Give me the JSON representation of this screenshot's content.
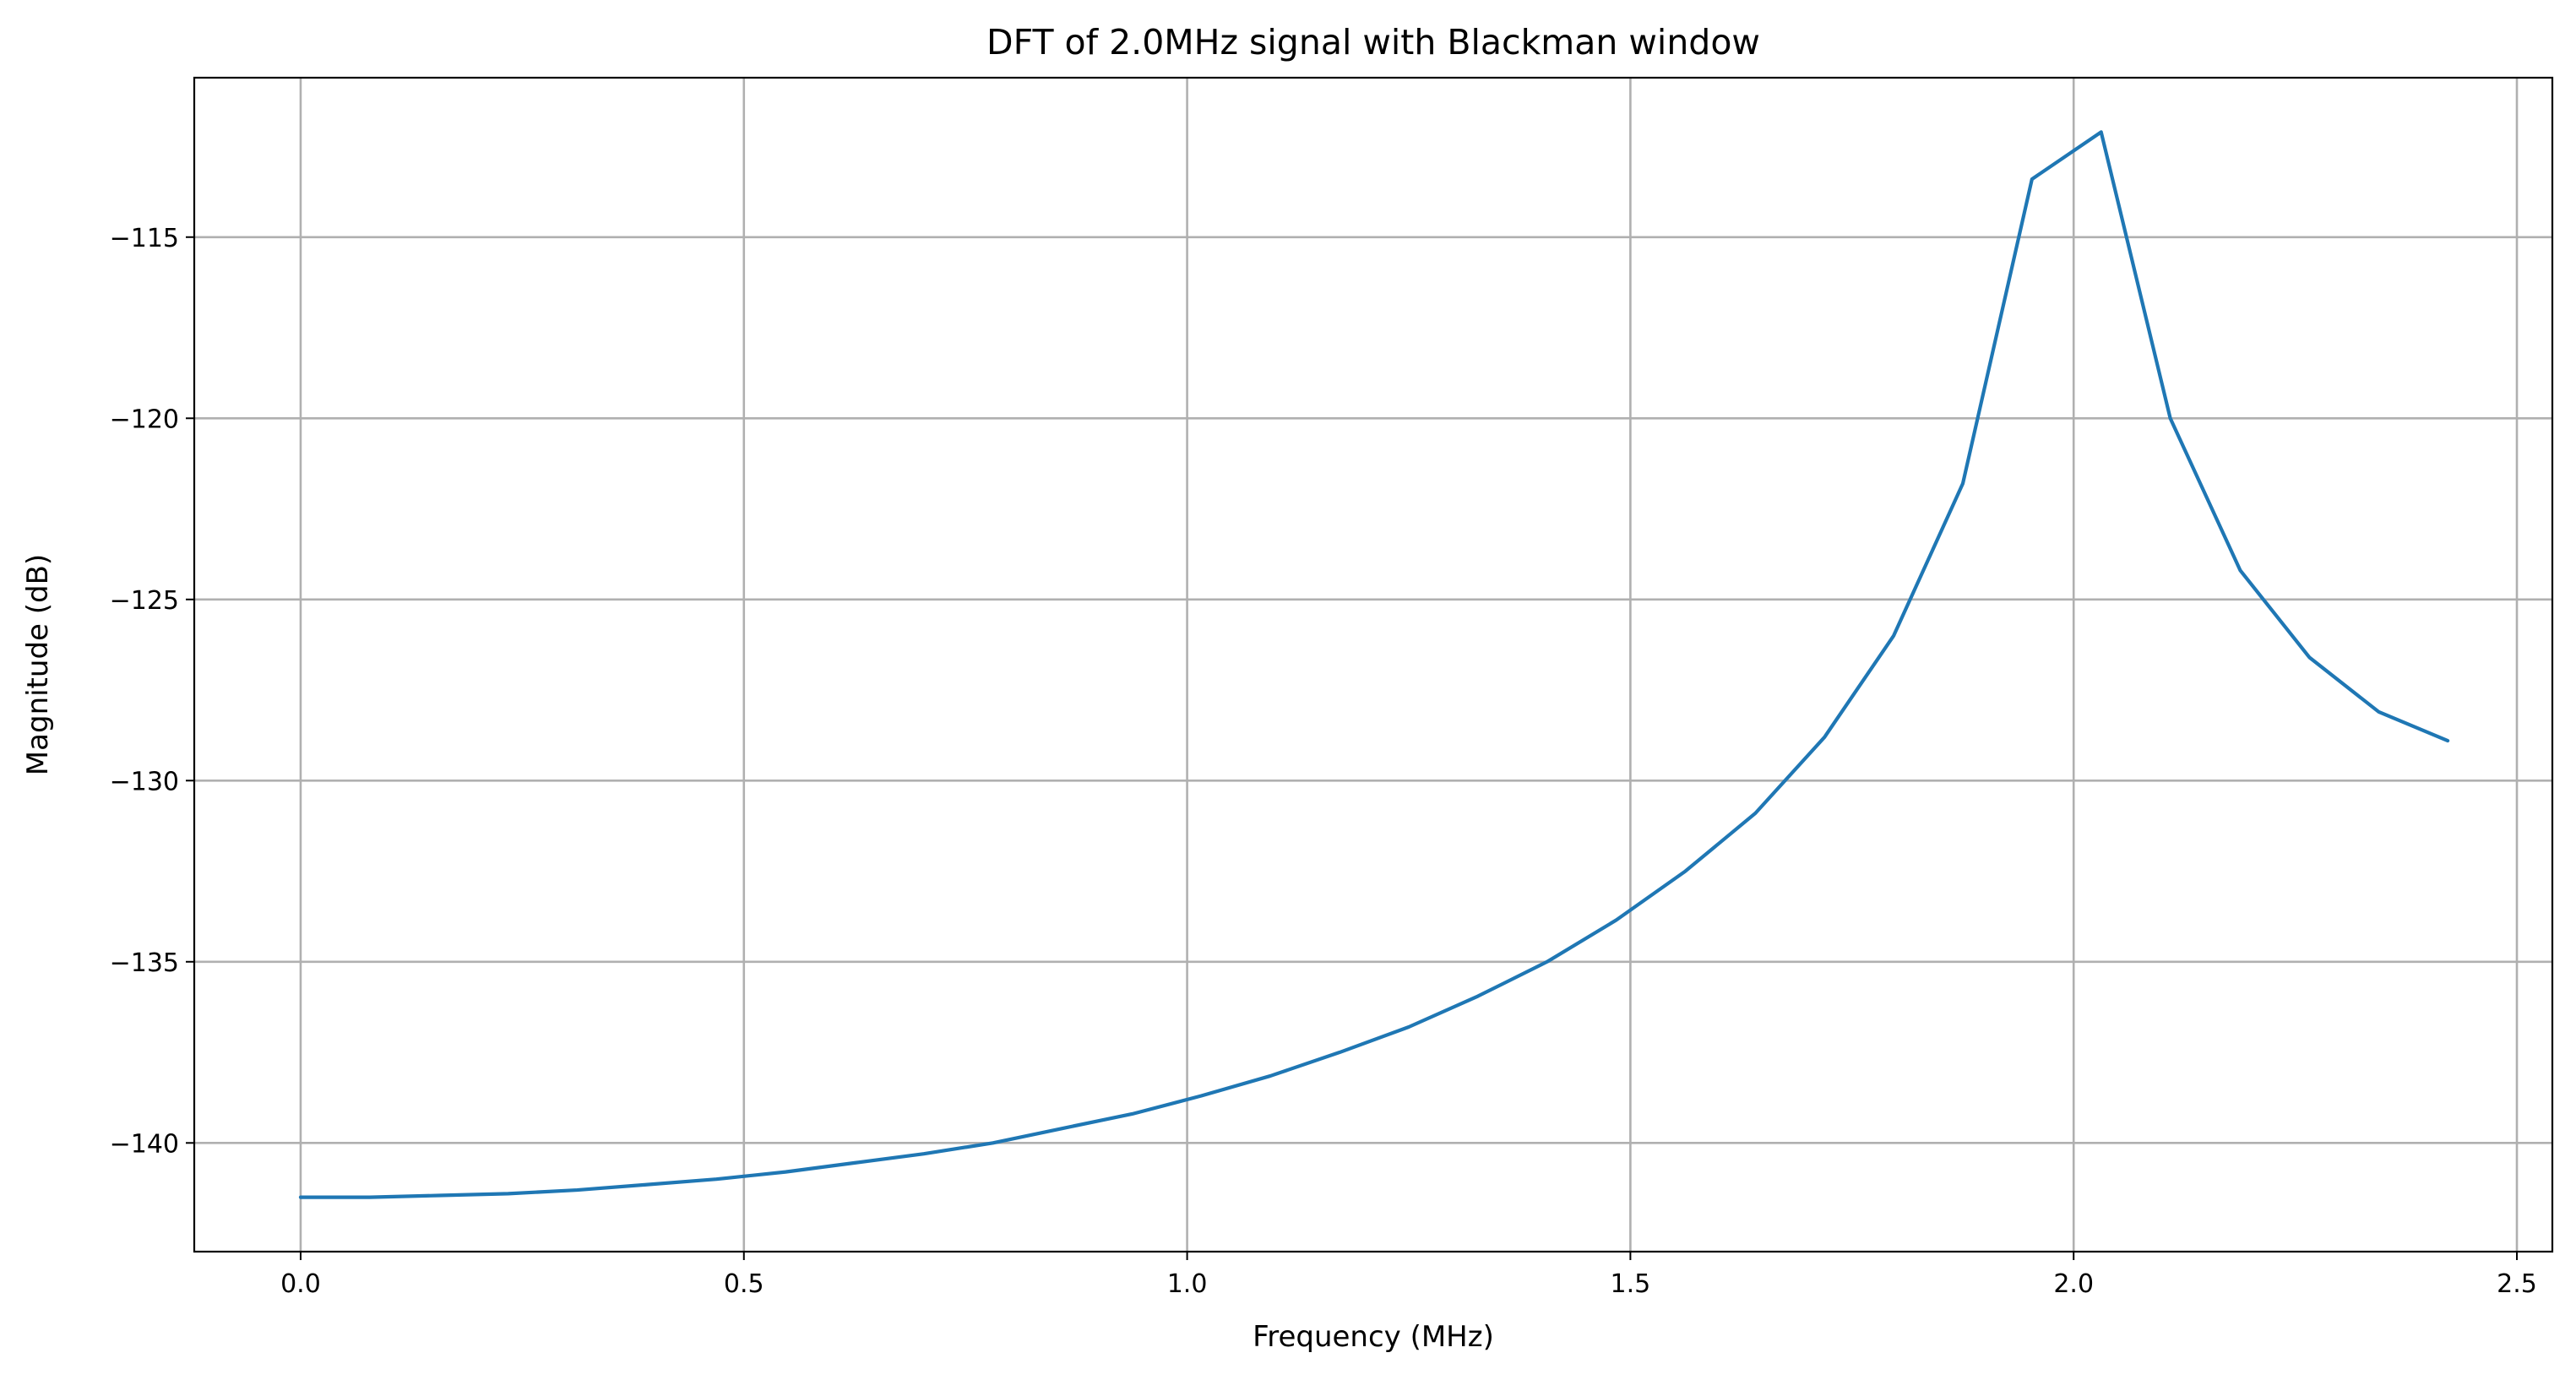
{
  "chart_data": {
    "type": "line",
    "title": "DFT of 2.0MHz signal with Blackman window",
    "xlabel": "Frequency (MHz)",
    "ylabel": "Magnitude (dB)",
    "xlim": [
      -0.12,
      2.54
    ],
    "ylim": [
      -143.0,
      -110.6
    ],
    "grid": true,
    "x_ticks": [
      {
        "value": 0.0,
        "label": "0.0"
      },
      {
        "value": 0.5,
        "label": "0.5"
      },
      {
        "value": 1.0,
        "label": "1.0"
      },
      {
        "value": 1.5,
        "label": "1.5"
      },
      {
        "value": 2.0,
        "label": "2.0"
      },
      {
        "value": 2.5,
        "label": "2.5"
      }
    ],
    "y_ticks": [
      {
        "value": -115,
        "label": "−115"
      },
      {
        "value": -120,
        "label": "−120"
      },
      {
        "value": -125,
        "label": "−125"
      },
      {
        "value": -130,
        "label": "−130"
      },
      {
        "value": -135,
        "label": "−135"
      },
      {
        "value": -140,
        "label": "−140"
      }
    ],
    "series": [
      {
        "color": "#1f77b4",
        "x": [
          0.0,
          0.078,
          0.156,
          0.234,
          0.312,
          0.391,
          0.469,
          0.547,
          0.625,
          0.703,
          0.781,
          0.859,
          0.938,
          1.016,
          1.094,
          1.172,
          1.25,
          1.328,
          1.406,
          1.484,
          1.562,
          1.641,
          1.719,
          1.797,
          1.875,
          1.953,
          2.031,
          2.109,
          2.188,
          2.266,
          2.344,
          2.422
        ],
        "y": [
          -141.5,
          -141.5,
          -141.45,
          -141.4,
          -141.3,
          -141.15,
          -141.0,
          -140.8,
          -140.55,
          -140.3,
          -140.0,
          -139.6,
          -139.2,
          -138.7,
          -138.15,
          -137.5,
          -136.8,
          -135.95,
          -135.0,
          -133.85,
          -132.5,
          -130.9,
          -128.8,
          -126.0,
          -121.8,
          -113.4,
          -112.1,
          -120.0,
          -124.2,
          -126.6,
          -128.1,
          -128.9
        ]
      }
    ]
  }
}
